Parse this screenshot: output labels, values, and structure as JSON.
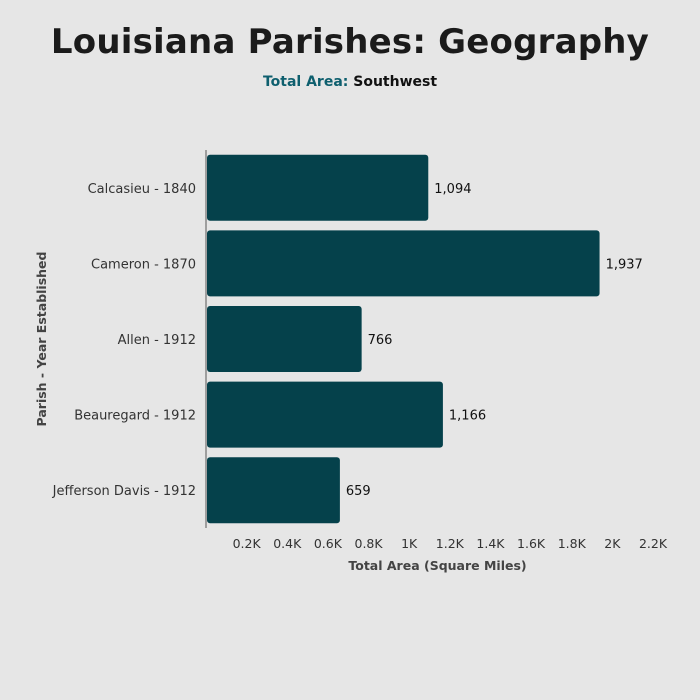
{
  "header": {
    "title": "Louisiana Parishes: Geography",
    "subtitle_lead": "Total Area:",
    "subtitle_rest": "Southwest"
  },
  "colors": {
    "bar": "#05414b",
    "background": "#e6e6e6",
    "accent": "#0e5f6e"
  },
  "chart_data": {
    "type": "bar",
    "orientation": "horizontal",
    "xlabel": "Total Area (Square Miles)",
    "ylabel": "Parish - Year Established",
    "categories": [
      "Calcasieu - 1840",
      "Cameron - 1870",
      "Allen - 1912",
      "Beauregard - 1912",
      "Jefferson Davis - 1912"
    ],
    "values": [
      1094,
      1937,
      766,
      1166,
      659
    ],
    "value_labels": [
      "1,094",
      "1,937",
      "766",
      "1,166",
      "659"
    ],
    "xlim": [
      0,
      2200
    ],
    "x_ticks": [
      200,
      400,
      600,
      800,
      1000,
      1200,
      1400,
      1600,
      1800,
      2000,
      2200
    ],
    "x_tick_labels": [
      "0.2K",
      "0.4K",
      "0.6K",
      "0.8K",
      "1K",
      "1.2K",
      "1.4K",
      "1.6K",
      "1.8K",
      "2K",
      "2.2K"
    ],
    "grid": false,
    "legend": "none"
  }
}
